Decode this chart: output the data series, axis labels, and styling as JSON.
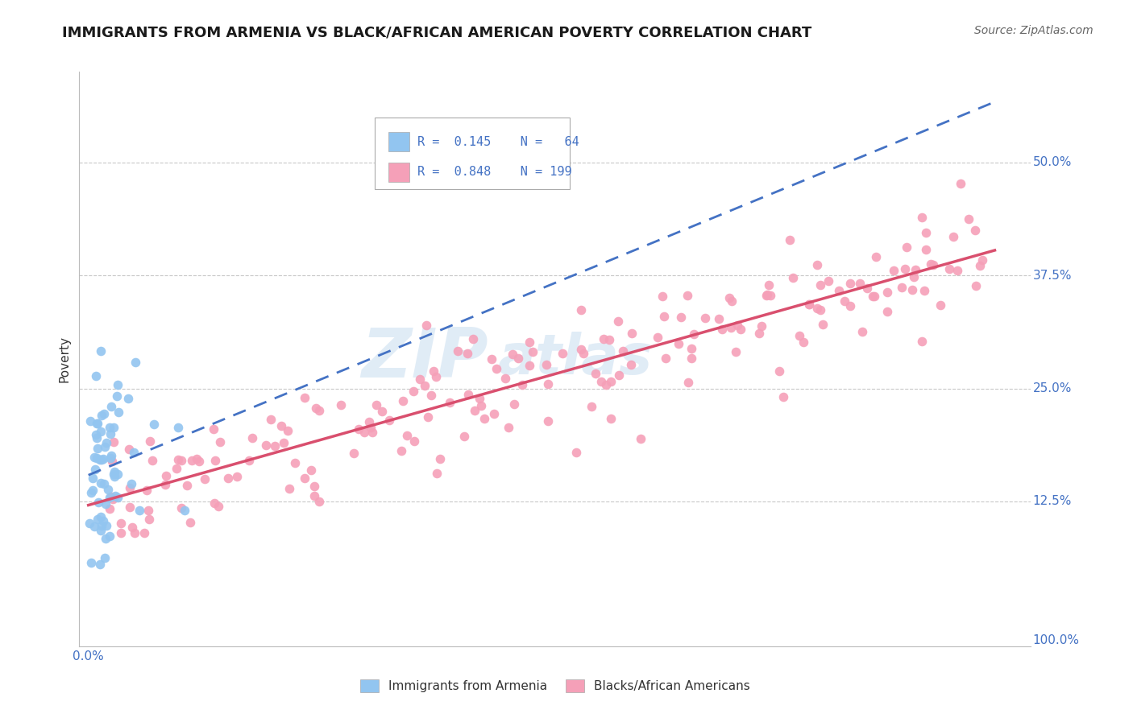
{
  "title": "IMMIGRANTS FROM ARMENIA VS BLACK/AFRICAN AMERICAN POVERTY CORRELATION CHART",
  "source": "Source: ZipAtlas.com",
  "ylabel": "Poverty",
  "ytick_labels": [
    "12.5%",
    "25.0%",
    "37.5%",
    "50.0%"
  ],
  "ytick_vals": [
    0.125,
    0.25,
    0.375,
    0.5
  ],
  "xtick_labels": [
    "0.0%",
    "100.0%"
  ],
  "series1_color": "#92c5f0",
  "series2_color": "#f5a0b8",
  "line1_color": "#4472c4",
  "line2_color": "#d94f6e",
  "watermark_color": "#c8ddf0",
  "background_color": "#ffffff",
  "grid_color": "#c8c8c8",
  "tick_color": "#4472c4",
  "series1_label": "Immigrants from Armenia",
  "series2_label": "Blacks/African Americans",
  "title_fontsize": 13,
  "source_fontsize": 10,
  "tick_fontsize": 11
}
